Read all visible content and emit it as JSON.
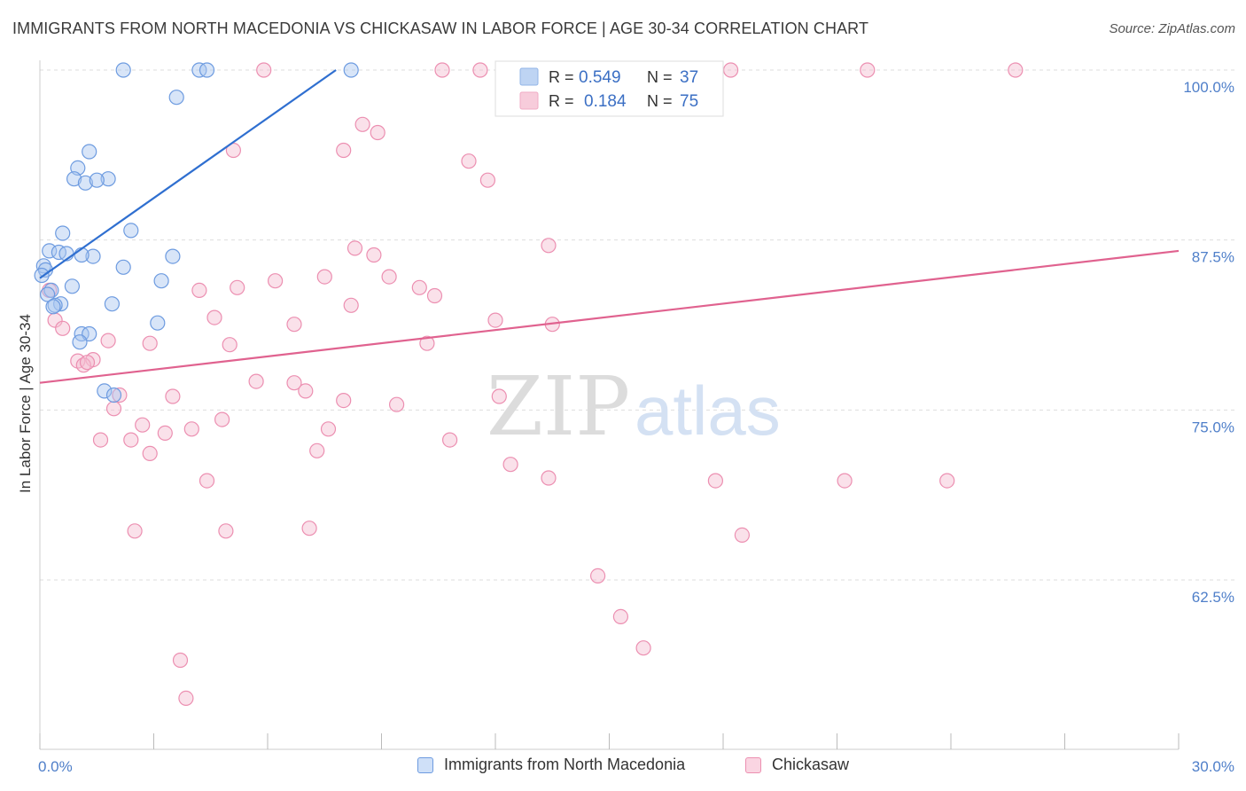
{
  "title": "IMMIGRANTS FROM NORTH MACEDONIA VS CHICKASAW IN LABOR FORCE | AGE 30-34 CORRELATION CHART",
  "source": "Source: ZipAtlas.com",
  "watermark": {
    "zip": "ZIP",
    "atlas": "atlas"
  },
  "colors": {
    "blue_fill": "#a9c6f0",
    "blue_stroke": "#6d9be0",
    "blue_line": "#2f6fd0",
    "pink_fill": "#f5bcd0",
    "pink_stroke": "#ec8fb1",
    "pink_line": "#e0628f",
    "axis_label": "#4f7fc9",
    "grid": "#dddddd"
  },
  "legend": {
    "r_label": "R =",
    "n_label": "N =",
    "rows": [
      {
        "r": "0.549",
        "n": "37"
      },
      {
        "r": "0.184",
        "n": "75"
      }
    ]
  },
  "chart_data": {
    "type": "scatter",
    "title": "IMMIGRANTS FROM NORTH MACEDONIA VS CHICKASAW IN LABOR FORCE | AGE 30-34 CORRELATION CHART",
    "xlabel": "",
    "ylabel": "In Labor Force | Age 30-34",
    "xlim": [
      0,
      30
    ],
    "ylim": [
      50,
      101
    ],
    "x_tick_labels": [
      "0.0%",
      "30.0%"
    ],
    "y_ticks": [
      62.5,
      75.0,
      87.5,
      100.0
    ],
    "y_tick_labels": [
      "62.5%",
      "75.0%",
      "87.5%",
      "100.0%"
    ],
    "grid": true,
    "series": [
      {
        "name": "Immigrants from North Macedonia",
        "r": 0.549,
        "n": 37,
        "trend": {
          "x": [
            0.0,
            7.8
          ],
          "y": [
            84.7,
            100.0
          ]
        },
        "points": [
          [
            2.2,
            100
          ],
          [
            4.2,
            100
          ],
          [
            4.4,
            100
          ],
          [
            8.2,
            100
          ],
          [
            3.6,
            98.0
          ],
          [
            1.3,
            94.0
          ],
          [
            1.0,
            92.8
          ],
          [
            0.9,
            92.0
          ],
          [
            1.8,
            92.0
          ],
          [
            1.2,
            91.7
          ],
          [
            1.5,
            91.9
          ],
          [
            0.6,
            88.0
          ],
          [
            2.4,
            88.2
          ],
          [
            1.4,
            86.3
          ],
          [
            3.5,
            86.3
          ],
          [
            0.25,
            86.7
          ],
          [
            0.5,
            86.6
          ],
          [
            0.7,
            86.5
          ],
          [
            1.1,
            86.4
          ],
          [
            0.1,
            85.6
          ],
          [
            0.15,
            85.3
          ],
          [
            2.2,
            85.5
          ],
          [
            0.85,
            84.1
          ],
          [
            3.2,
            84.5
          ],
          [
            0.3,
            83.8
          ],
          [
            0.2,
            83.5
          ],
          [
            0.55,
            82.8
          ],
          [
            1.9,
            82.8
          ],
          [
            0.4,
            82.7
          ],
          [
            0.35,
            82.6
          ],
          [
            3.1,
            81.4
          ],
          [
            1.1,
            80.6
          ],
          [
            1.3,
            80.6
          ],
          [
            1.05,
            80.0
          ],
          [
            1.7,
            76.4
          ],
          [
            1.95,
            76.1
          ],
          [
            0.05,
            84.9
          ]
        ]
      },
      {
        "name": "Chickasaw",
        "r": 0.184,
        "n": 75,
        "trend": {
          "x": [
            0.0,
            30.0
          ],
          "y": [
            77.0,
            86.7
          ]
        },
        "points": [
          [
            5.9,
            100
          ],
          [
            10.6,
            100
          ],
          [
            11.6,
            100
          ],
          [
            13.2,
            100
          ],
          [
            16.1,
            100
          ],
          [
            17.0,
            100
          ],
          [
            18.2,
            100
          ],
          [
            21.8,
            100
          ],
          [
            25.7,
            100
          ],
          [
            8.5,
            96.0
          ],
          [
            8.9,
            95.4
          ],
          [
            5.1,
            94.1
          ],
          [
            8.0,
            94.1
          ],
          [
            11.3,
            93.3
          ],
          [
            11.8,
            91.9
          ],
          [
            8.3,
            86.9
          ],
          [
            8.8,
            86.4
          ],
          [
            13.4,
            87.1
          ],
          [
            7.5,
            84.8
          ],
          [
            9.2,
            84.8
          ],
          [
            6.2,
            84.5
          ],
          [
            10.0,
            84.0
          ],
          [
            5.2,
            84.0
          ],
          [
            4.2,
            83.8
          ],
          [
            10.4,
            83.4
          ],
          [
            8.2,
            82.7
          ],
          [
            0.25,
            83.8
          ],
          [
            4.6,
            81.8
          ],
          [
            6.7,
            81.3
          ],
          [
            12.0,
            81.6
          ],
          [
            13.5,
            81.3
          ],
          [
            0.4,
            81.6
          ],
          [
            0.6,
            81.0
          ],
          [
            1.8,
            80.1
          ],
          [
            2.9,
            79.9
          ],
          [
            10.2,
            79.9
          ],
          [
            1.0,
            78.6
          ],
          [
            1.4,
            78.7
          ],
          [
            1.15,
            78.3
          ],
          [
            1.25,
            78.5
          ],
          [
            5.7,
            77.1
          ],
          [
            6.7,
            77.0
          ],
          [
            7.0,
            76.4
          ],
          [
            3.5,
            76.0
          ],
          [
            2.1,
            76.1
          ],
          [
            8.0,
            75.7
          ],
          [
            9.4,
            75.4
          ],
          [
            12.1,
            76.0
          ],
          [
            1.95,
            75.1
          ],
          [
            4.8,
            74.3
          ],
          [
            2.7,
            73.9
          ],
          [
            3.3,
            73.3
          ],
          [
            4.0,
            73.6
          ],
          [
            7.6,
            73.6
          ],
          [
            1.6,
            72.8
          ],
          [
            2.4,
            72.8
          ],
          [
            10.8,
            72.8
          ],
          [
            7.3,
            72.0
          ],
          [
            2.9,
            71.8
          ],
          [
            12.4,
            71.0
          ],
          [
            13.4,
            70.0
          ],
          [
            4.4,
            69.8
          ],
          [
            17.8,
            69.8
          ],
          [
            21.2,
            69.8
          ],
          [
            23.9,
            69.8
          ],
          [
            2.5,
            66.1
          ],
          [
            4.9,
            66.1
          ],
          [
            7.1,
            66.3
          ],
          [
            18.5,
            65.8
          ],
          [
            14.7,
            62.8
          ],
          [
            15.3,
            59.8
          ],
          [
            15.9,
            57.5
          ],
          [
            3.7,
            56.6
          ],
          [
            3.85,
            53.8
          ],
          [
            5.0,
            79.8
          ]
        ]
      }
    ]
  }
}
